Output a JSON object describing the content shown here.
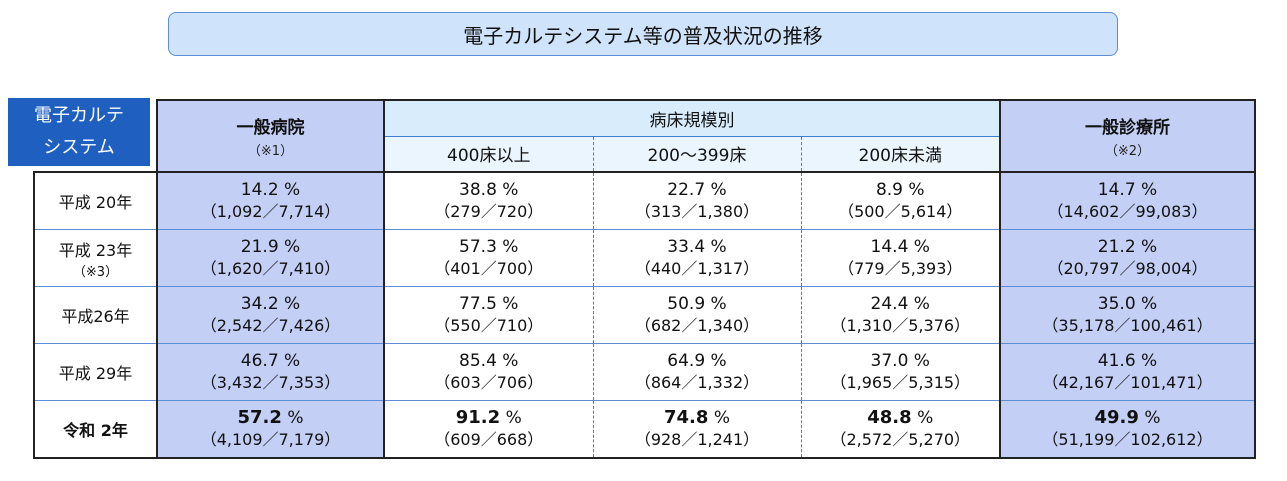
{
  "title": "電子カルテシステム等の普及状況の推移",
  "corner": {
    "line1": "電子カルテ",
    "line2": "システム"
  },
  "headers": {
    "general_hospital": "一般病院",
    "general_hospital_note": "（※1）",
    "bed_scale_group": "病床規模別",
    "beds_400": "400床以上",
    "beds_200_399": "200～399床",
    "beds_under_200": "200床未満",
    "general_clinic": "一般診療所",
    "general_clinic_note": "（※2）"
  },
  "rows": [
    {
      "year": "平成 20年",
      "note": "",
      "general": {
        "pct": "14.2",
        "unit": " %",
        "count": "（1,092／7,714）"
      },
      "b400": {
        "pct": "38.8",
        "unit": " %",
        "count": "（279／720）"
      },
      "b200": {
        "pct": "22.7",
        "unit": " %",
        "count": "（313／1,380）"
      },
      "bu200": {
        "pct": "8.9",
        "unit": " %",
        "count": "（500／5,614）"
      },
      "clinic": {
        "pct": "14.7",
        "unit": " %",
        "count": "（14,602／99,083）"
      }
    },
    {
      "year": "平成 23年",
      "note": "（※3）",
      "general": {
        "pct": "21.9",
        "unit": " %",
        "count": "（1,620／7,410）"
      },
      "b400": {
        "pct": "57.3",
        "unit": " %",
        "count": "（401／700）"
      },
      "b200": {
        "pct": "33.4",
        "unit": " %",
        "count": "（440／1,317）"
      },
      "bu200": {
        "pct": "14.4",
        "unit": " %",
        "count": "（779／5,393）"
      },
      "clinic": {
        "pct": "21.2",
        "unit": " %",
        "count": "（20,797／98,004）"
      }
    },
    {
      "year": "平成26年",
      "note": "",
      "general": {
        "pct": "34.2",
        "unit": " %",
        "count": "（2,542／7,426）"
      },
      "b400": {
        "pct": "77.5",
        "unit": " %",
        "count": "（550／710）"
      },
      "b200": {
        "pct": "50.9",
        "unit": " %",
        "count": "（682／1,340）"
      },
      "bu200": {
        "pct": "24.4",
        "unit": " %",
        "count": "（1,310／5,376）"
      },
      "clinic": {
        "pct": "35.0",
        "unit": " %",
        "count": "（35,178／100,461）"
      }
    },
    {
      "year": "平成 29年",
      "note": "",
      "general": {
        "pct": "46.7",
        "unit": " %",
        "count": "（3,432／7,353）"
      },
      "b400": {
        "pct": "85.4",
        "unit": " %",
        "count": "（603／706）"
      },
      "b200": {
        "pct": "64.9",
        "unit": " %",
        "count": "（864／1,332）"
      },
      "bu200": {
        "pct": "37.0",
        "unit": " %",
        "count": "（1,965／5,315）"
      },
      "clinic": {
        "pct": "41.6",
        "unit": " %",
        "count": "（42,167／101,471）"
      }
    },
    {
      "year": "令和 2年",
      "note": "",
      "general": {
        "pct": "57.2",
        "unit": " %",
        "count": "（4,109／7,179）"
      },
      "b400": {
        "pct": "91.2",
        "unit": " %",
        "count": "（609／668）"
      },
      "b200": {
        "pct": "74.8",
        "unit": " %",
        "count": "（928／1,241）"
      },
      "bu200": {
        "pct": "48.8",
        "unit": " %",
        "count": "（2,572／5,270）"
      },
      "clinic": {
        "pct": "49.9",
        "unit": " %",
        "count": "（51,199／102,612）"
      }
    }
  ],
  "colors": {
    "title_bg": "#cfe3fb",
    "corner_bg": "#1f5fc0",
    "hospital_clinic_bg": "#c4cff5",
    "group_header_bg": "#d9ecfb"
  }
}
